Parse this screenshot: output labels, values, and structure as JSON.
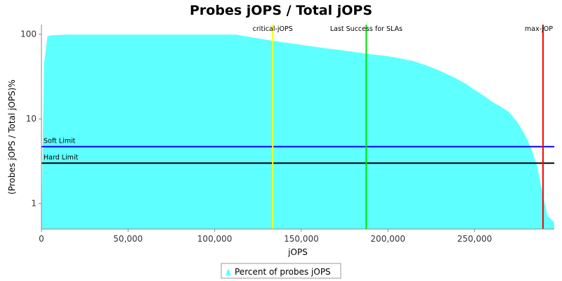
{
  "chart_data": {
    "type": "area",
    "title": "Probes jOPS / Total jOPS",
    "xlabel": "jOPS",
    "ylabel": "(Probes jOPS / Total jOPS)%",
    "xlim": [
      0,
      296000
    ],
    "ylim": [
      0.5,
      130
    ],
    "y_scale": "log",
    "grid": false,
    "x_ticks": [
      0,
      50000,
      100000,
      150000,
      200000,
      250000
    ],
    "x_tick_labels": [
      "0",
      "50,000",
      "100,000",
      "150,000",
      "200,000",
      "250,000"
    ],
    "y_ticks": [
      1,
      10,
      100
    ],
    "y_tick_labels": [
      "1",
      "10",
      "100"
    ],
    "series": [
      {
        "name": "Percent of probes jOPS",
        "color": "#5effff",
        "x": [
          0,
          1500,
          3500,
          6000,
          10000,
          15000,
          30000,
          60000,
          90000,
          112000,
          120000,
          130000,
          140000,
          150000,
          160000,
          170000,
          180000,
          190000,
          200000,
          207000,
          215000,
          222000,
          230000,
          238000,
          245000,
          250000,
          255000,
          260000,
          265000,
          270000,
          275000,
          280000,
          283000,
          286000,
          289000,
          292000,
          296000
        ],
        "y": [
          0.5,
          45,
          95,
          97,
          98,
          99,
          99,
          99,
          99,
          99,
          93,
          86,
          80,
          75,
          70,
          66,
          62,
          58,
          55,
          52,
          48,
          43,
          37,
          31,
          26,
          22,
          19,
          16,
          14,
          12,
          9,
          6,
          4.3,
          2.8,
          1.4,
          0.72,
          0.6
        ]
      }
    ],
    "reference_lines": {
      "vertical": [
        {
          "label": "critical-jOPS",
          "x": 133500,
          "color": "#ffff00"
        },
        {
          "label": "Last Success for SLAs",
          "x": 187500,
          "color": "#00e000"
        },
        {
          "label": "max-jOP",
          "x": 289500,
          "color": "#ff0000"
        }
      ],
      "horizontal": [
        {
          "label": "Soft Limit",
          "y": 4.7,
          "color": "#0000ff"
        },
        {
          "label": "Hard Limit",
          "y": 3.0,
          "color": "#000000"
        }
      ]
    },
    "legend": {
      "position": "bottom",
      "entries": [
        "Percent of probes jOPS"
      ]
    }
  }
}
